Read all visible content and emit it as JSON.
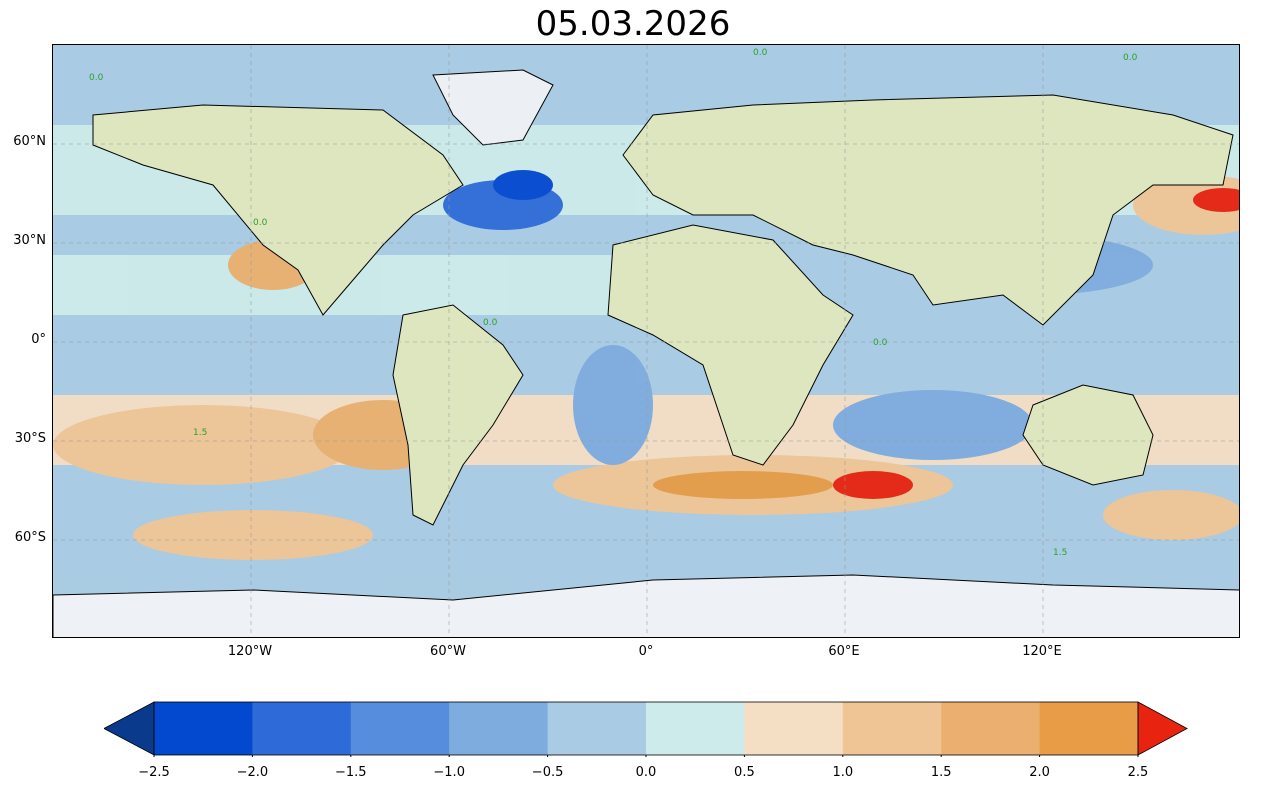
{
  "title": "05.03.2026",
  "map": {
    "projection": "PlateCarree",
    "extent_lon": [
      -180,
      180
    ],
    "extent_lat": [
      -90,
      90
    ],
    "lat_ticks": [
      {
        "value": 60,
        "label": "60°N"
      },
      {
        "value": 30,
        "label": "30°N"
      },
      {
        "value": 0,
        "label": "0°"
      },
      {
        "value": -30,
        "label": "30°S"
      },
      {
        "value": -60,
        "label": "60°S"
      }
    ],
    "lon_ticks": [
      {
        "value": -120,
        "label": "120°W"
      },
      {
        "value": -60,
        "label": "60°W"
      },
      {
        "value": 0,
        "label": "0°"
      },
      {
        "value": 60,
        "label": "60°E"
      },
      {
        "value": 120,
        "label": "120°E"
      }
    ],
    "gridlines": true,
    "contour_label_values": [
      "0.0",
      "1.5"
    ],
    "contour_label_color": "#2ca02c"
  },
  "colorbar": {
    "orientation": "horizontal",
    "extend": "both",
    "levels": [
      -2.5,
      -2.0,
      -1.5,
      -1.0,
      -0.5,
      0.0,
      0.5,
      1.0,
      1.5,
      2.0,
      2.5
    ],
    "tick_labels": [
      "−2.5",
      "−2.0",
      "−1.5",
      "−1.0",
      "−0.5",
      "0.0",
      "0.5",
      "1.0",
      "1.5",
      "2.0",
      "2.5"
    ],
    "under_color": "#0a3a8c",
    "over_color": "#e8230f",
    "colors": [
      "#0349cf",
      "#2f6bd8",
      "#578ddd",
      "#7eacde",
      "#a9cbe3",
      "#cdebea",
      "#f5dfc4",
      "#f0c596",
      "#ebb06f",
      "#e79c45"
    ]
  }
}
